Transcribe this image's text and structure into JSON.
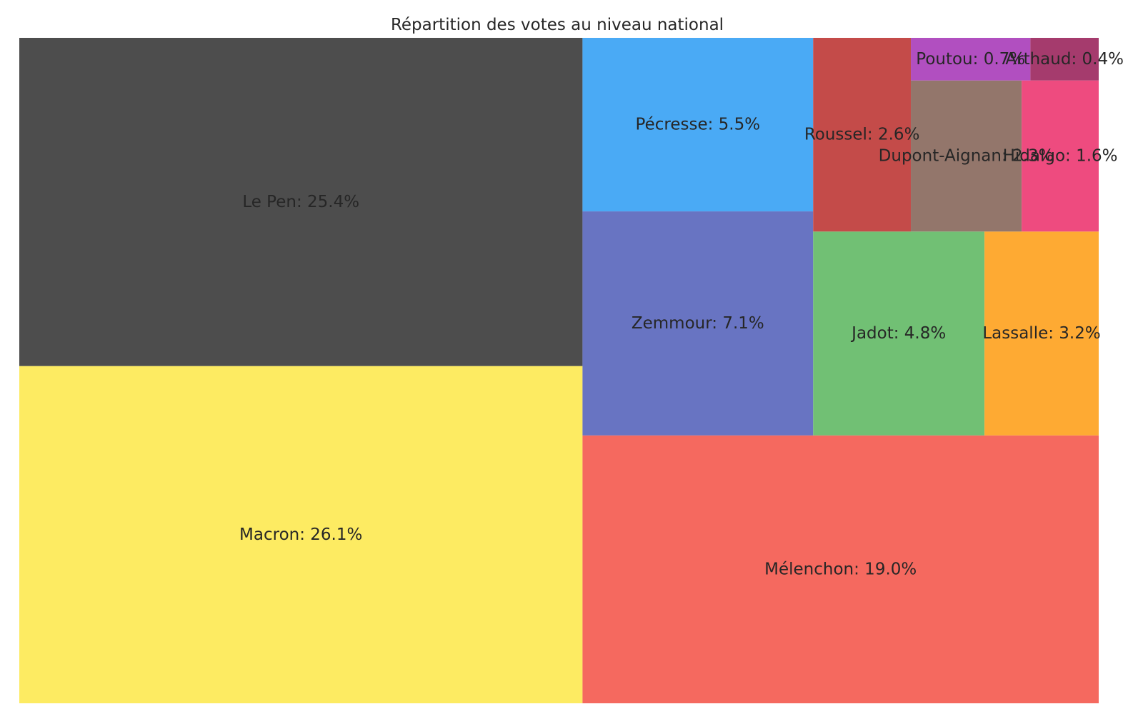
{
  "chart_data": {
    "type": "treemap",
    "title": "Répartition des votes au niveau national",
    "unit": "%",
    "items": [
      {
        "name": "Macron",
        "value": 26.1,
        "label": "Macron: 26.1%",
        "color": "#fdeb62"
      },
      {
        "name": "Le Pen",
        "value": 25.4,
        "label": "Le Pen: 25.4%",
        "color": "#4d4d4d"
      },
      {
        "name": "Mélenchon",
        "value": 19.0,
        "label": "Mélenchon: 19.0%",
        "color": "#f5695f"
      },
      {
        "name": "Zemmour",
        "value": 7.1,
        "label": "Zemmour: 7.1%",
        "color": "#6874c2"
      },
      {
        "name": "Pécresse",
        "value": 5.5,
        "label": "Pécresse: 5.5%",
        "color": "#4aaaf5"
      },
      {
        "name": "Jadot",
        "value": 4.8,
        "label": "Jadot: 4.8%",
        "color": "#71c074"
      },
      {
        "name": "Lassalle",
        "value": 3.2,
        "label": "Lassalle: 3.2%",
        "color": "#feaa33"
      },
      {
        "name": "Roussel",
        "value": 2.6,
        "label": "Roussel: 2.6%",
        "color": "#c44b49"
      },
      {
        "name": "Dupont-Aignan",
        "value": 2.3,
        "label": "Dupont-Aignan: 2.3%",
        "color": "#93766b"
      },
      {
        "name": "Hidalgo",
        "value": 1.6,
        "label": "Hidalgo: 1.6%",
        "color": "#ee4b7f"
      },
      {
        "name": "Poutou",
        "value": 0.7,
        "label": "Poutou: 0.7%",
        "color": "#b14fc0"
      },
      {
        "name": "Arthaud",
        "value": 0.4,
        "label": "Arthaud: 0.4%",
        "color": "#a53b6d"
      }
    ]
  }
}
